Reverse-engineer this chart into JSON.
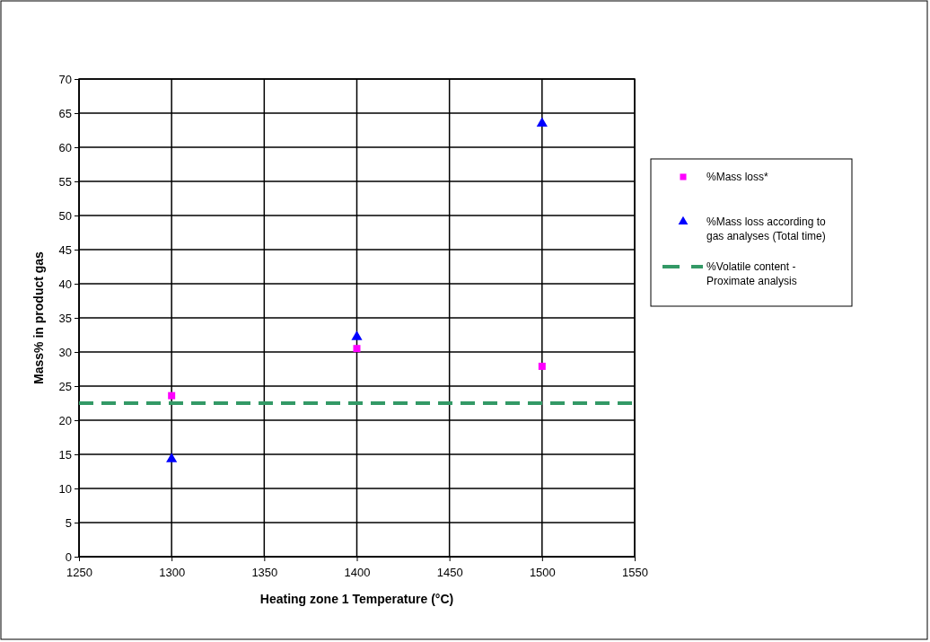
{
  "chart_data": {
    "type": "scatter",
    "xlabel": "Heating zone 1 Temperature (°C)",
    "ylabel": "Mass% in product gas",
    "xlim": [
      1250,
      1550
    ],
    "xticks": [
      1250,
      1300,
      1350,
      1400,
      1450,
      1500,
      1550
    ],
    "ylim": [
      0,
      70
    ],
    "yticks": [
      0,
      5,
      10,
      15,
      20,
      25,
      30,
      35,
      40,
      45,
      50,
      55,
      60,
      65,
      70
    ],
    "grid": true,
    "legend": "right",
    "series": [
      {
        "name": "%Mass loss*",
        "color": "#ff00ff",
        "marker": "square",
        "x": [
          1300,
          1400,
          1500
        ],
        "values": [
          23.6,
          30.5,
          27.9
        ]
      },
      {
        "name": "%Mass loss according to gas analyses  (Total time)",
        "color": "#0000ff",
        "marker": "triangle",
        "x": [
          1300,
          1400,
          1500
        ],
        "values": [
          14.3,
          32.2,
          63.5
        ]
      },
      {
        "name": "%Volatile content - Proximate analysis",
        "type": "line",
        "color": "#339966",
        "line_style": "dashed",
        "marker": "none",
        "x": [
          1250,
          1550
        ],
        "values": [
          22.5,
          22.5
        ]
      }
    ]
  }
}
